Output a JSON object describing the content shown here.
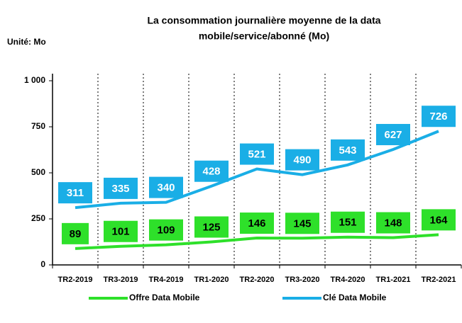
{
  "chart_data": {
    "type": "line",
    "title": [
      "La consommation journalière moyenne de la data",
      "mobile/service/abonné (Mo)"
    ],
    "unit_label": "Unité: Mo",
    "categories": [
      "TR2-2019",
      "TR3-2019",
      "TR4-2019",
      "TR1-2020",
      "TR2-2020",
      "TR3-2020",
      "TR4-2020",
      "TR1-2021",
      "TR2-2021"
    ],
    "series": [
      {
        "name": "Offre Data Mobile",
        "color": "#2ee02a",
        "values": [
          89,
          101,
          109,
          125,
          146,
          145,
          151,
          148,
          164
        ]
      },
      {
        "name": "Clé Data Mobile",
        "color": "#1aaee6",
        "values": [
          311,
          335,
          340,
          428,
          521,
          490,
          543,
          627,
          726
        ]
      }
    ],
    "ylim": [
      0,
      1000
    ],
    "yticks": [
      0,
      250,
      500,
      750,
      {
        "value": 1000,
        "label": "1 000"
      }
    ],
    "legend": "bottom"
  }
}
